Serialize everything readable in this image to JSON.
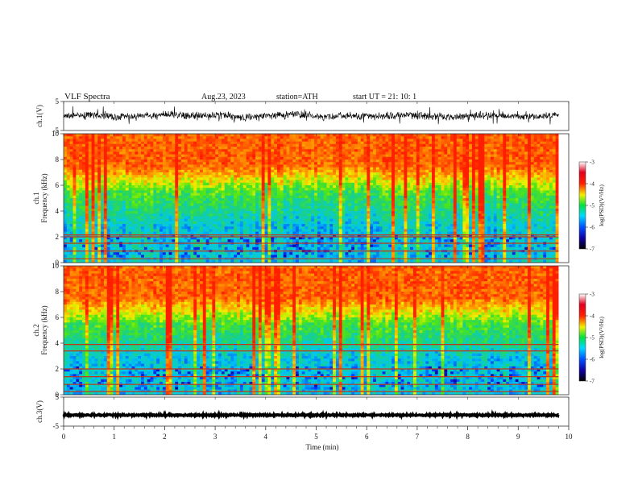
{
  "header": {
    "title": "VLF  Spectra",
    "date": "Aug.23, 2023",
    "station": "station=ATH",
    "start": "start  UT  =    21: 10: 1"
  },
  "chart_data": [
    {
      "type": "line",
      "name": "ch1-waveform",
      "ylabel": "ch.1(V)",
      "ylim": [
        -5,
        5
      ],
      "ytick_labels": [
        "5",
        "-5"
      ],
      "x_range_min": [
        0,
        9.8
      ],
      "trace_level": [
        0,
        0.4,
        -0.3,
        0.2,
        0.5,
        -0.1,
        0.3,
        -0.4,
        0.1,
        0.6,
        -0.2,
        0.2,
        -0.3,
        0.4,
        0.0,
        -0.5,
        0.3,
        0.1,
        -0.2,
        0.5
      ],
      "trace_amplitude_v": 1.5
    },
    {
      "type": "heatmap",
      "name": "ch1-spectrogram",
      "ylabel": "ch.1\nFrequency  (kHz)",
      "ylim": [
        0,
        10
      ],
      "ytick_labels": [
        "0",
        "2",
        "4",
        "6",
        "8",
        "10"
      ],
      "x_range_min": [
        0,
        9.8
      ],
      "horizontal_lines_khz": [
        0.3,
        0.9,
        1.5,
        2.0,
        2.15
      ],
      "colorbar": {
        "label": "log(PSD)(V²/Hz)",
        "range": [
          -7,
          -3
        ],
        "tick_labels": [
          "-3",
          "-4",
          "-5",
          "-6",
          "-7"
        ]
      }
    },
    {
      "type": "heatmap",
      "name": "ch2-spectrogram",
      "ylabel": "ch.2\nFrequency  (kHz)",
      "ylim": [
        0,
        10
      ],
      "ytick_labels": [
        "0",
        "2",
        "4",
        "6",
        "8",
        "10"
      ],
      "x_range_min": [
        0,
        9.8
      ],
      "horizontal_lines_khz": [
        0.25,
        0.8,
        1.4,
        2.0,
        3.4,
        3.9
      ],
      "colorbar": {
        "label": "log(PSD)(V²/Hz)",
        "range": [
          -7,
          -3
        ],
        "tick_labels": [
          "-3",
          "-4",
          "-5",
          "-6",
          "-7"
        ]
      }
    },
    {
      "type": "line",
      "name": "ch3-waveform",
      "ylabel": "ch.3(V)",
      "ylim": [
        -5,
        5
      ],
      "ytick_labels": [
        "5",
        "-5"
      ],
      "x_range_min": [
        0,
        9.8
      ],
      "trace_level": [
        -1.2
      ],
      "trace_amplitude_v": 0.3
    }
  ],
  "xaxis": {
    "label": "Time  (min)",
    "range": [
      0,
      10
    ],
    "tick_labels": [
      "0",
      "1",
      "2",
      "3",
      "4",
      "5",
      "6",
      "7",
      "8",
      "9",
      "10"
    ]
  },
  "colors": {
    "trace": "#000000",
    "spectro_low": "#1400c8",
    "spectro_mid": "#1ec8c8",
    "spectro_high": "#ff2a00",
    "band_line": "#c0361a"
  }
}
